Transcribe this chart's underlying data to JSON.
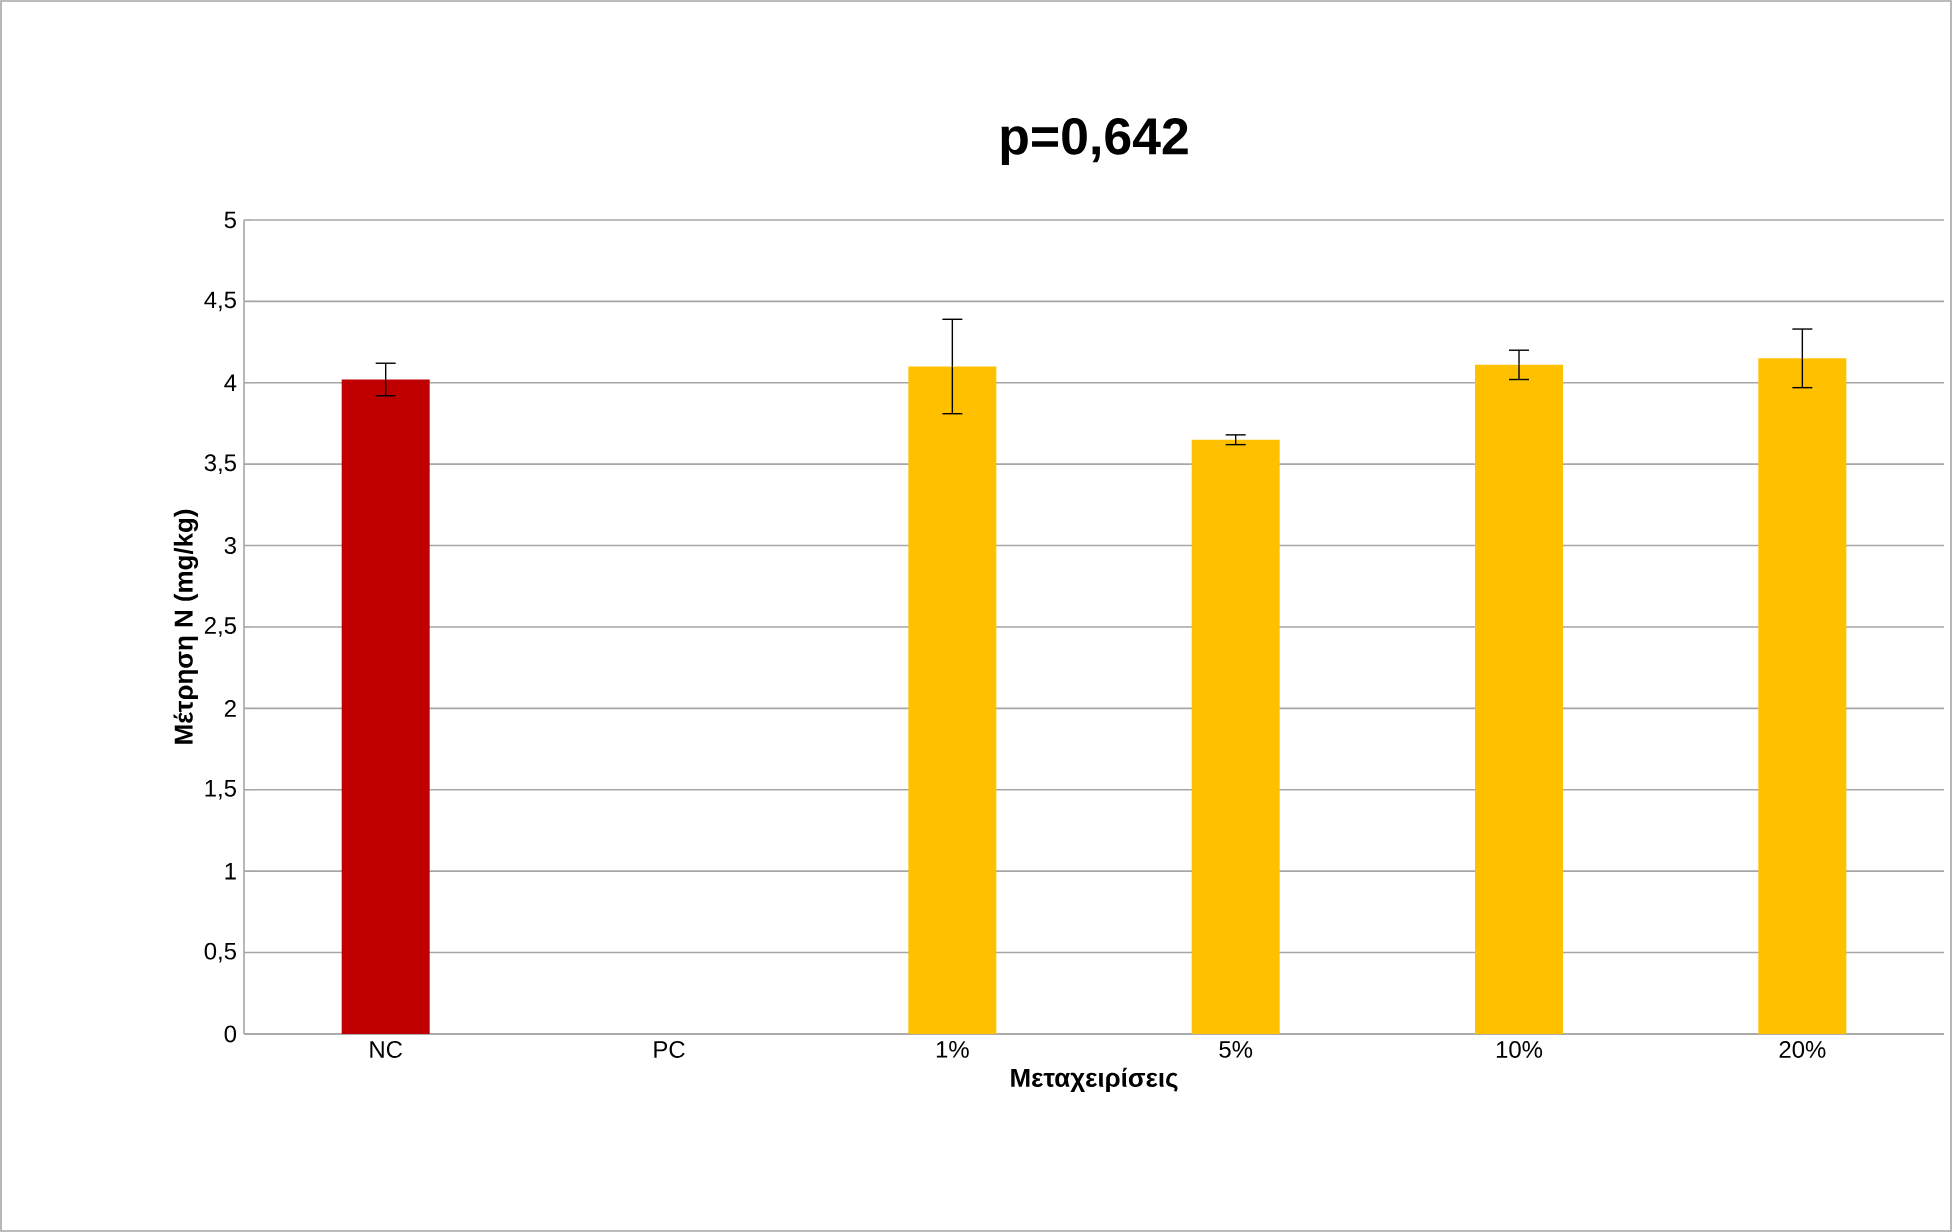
{
  "chart_data": {
    "type": "bar",
    "title": "p=0,642",
    "xlabel": "Μεταχειρίσεις",
    "ylabel": "Μέτρηση N (mg/kg)",
    "categories": [
      "NC",
      "PC",
      "1%",
      "5%",
      "10%",
      "20%"
    ],
    "values": [
      4.02,
      null,
      4.1,
      3.65,
      4.11,
      4.15
    ],
    "errors": [
      0.1,
      null,
      0.29,
      0.03,
      0.09,
      0.18
    ],
    "colors": [
      "#c00000",
      "#ffc000",
      "#ffc000",
      "#ffc000",
      "#ffc000",
      "#ffc000"
    ],
    "ylim": [
      0,
      5
    ],
    "yticks": [
      0,
      {
        "value": 0.5,
        "label": "0,5"
      },
      1,
      {
        "value": 1.5,
        "label": "1,5"
      },
      2,
      {
        "value": 2.5,
        "label": "2,5"
      },
      3,
      {
        "value": 3.5,
        "label": "3,5"
      },
      4,
      {
        "value": 4.5,
        "label": "4,5"
      },
      5
    ],
    "grid": "y"
  }
}
